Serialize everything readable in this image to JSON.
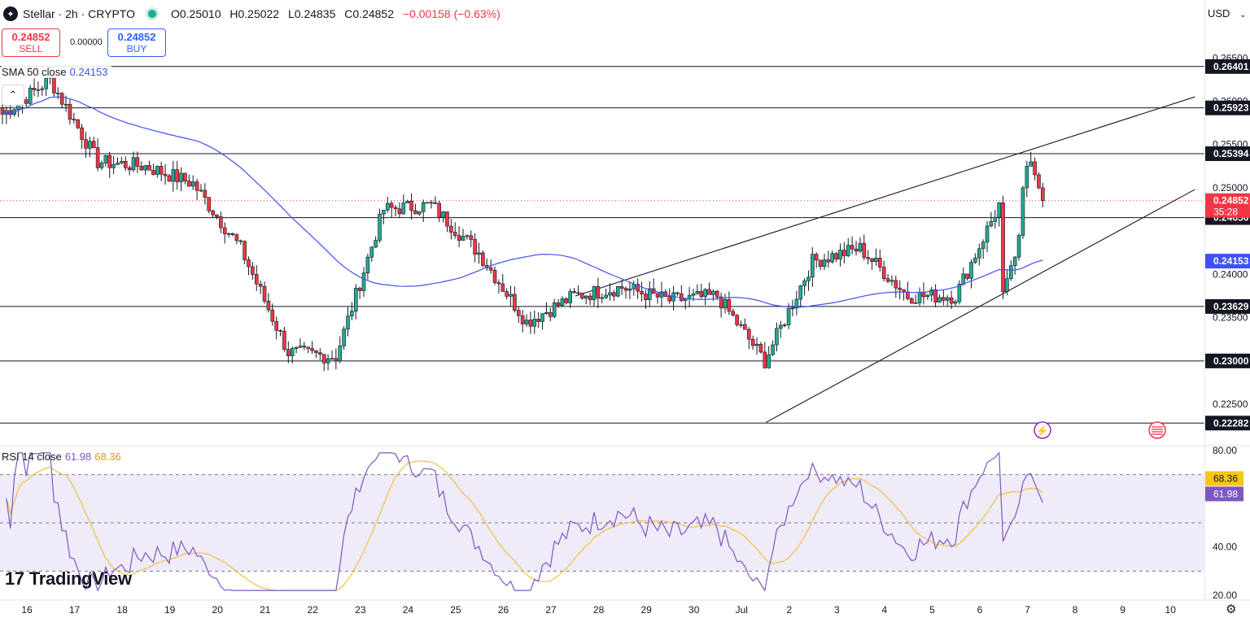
{
  "header": {
    "symbol": "Stellar · 2h · CRYPTO",
    "open": "O0.25010",
    "high": "H0.25022",
    "low": "L0.24835",
    "close": "C0.24852",
    "change": "−0.00158 (−0.63%)"
  },
  "trade": {
    "sell_price": "0.24852",
    "sell_label": "SELL",
    "buy_price": "0.24852",
    "buy_label": "BUY",
    "spread": "0.00000"
  },
  "legend": {
    "sma_label": "SMA 50 close",
    "sma_value": "0.24153",
    "rsi_label": "RSI 14 close",
    "rsi_value": "61.98",
    "rsi_ma_value": "68.36"
  },
  "currency": "USD",
  "brand": "TradingView",
  "colors": {
    "up": "#22ab94",
    "down": "#f23645",
    "sma": "#3f51f5",
    "rsi": "#7e57c2",
    "rsi_ma": "#f0c040"
  },
  "chart_data": {
    "type": "candlestick",
    "interval": "2h",
    "x_ticks": [
      "16",
      "17",
      "18",
      "19",
      "20",
      "21",
      "22",
      "23",
      "24",
      "25",
      "26",
      "27",
      "28",
      "29",
      "30",
      "Jul",
      "2",
      "3",
      "4",
      "5",
      "6",
      "7",
      "8",
      "9",
      "10"
    ],
    "y_ticks": [
      "0.26500",
      "0.26000",
      "0.25500",
      "0.25000",
      "0.24000",
      "0.23500",
      "0.22500"
    ],
    "price_range": [
      0.2205,
      0.2685
    ],
    "horizontal_levels": [
      "0.26401",
      "0.25923",
      "0.25394",
      "0.24656",
      "0.23629",
      "0.23000",
      "0.22282"
    ],
    "current_price": {
      "value": 0.24852,
      "label": "0.24852",
      "countdown": "35:28"
    },
    "sma_tag": {
      "value": 0.24153,
      "label": "0.24153"
    },
    "trendlines": [
      {
        "from": [
          "Jun 27",
          0.2375
        ],
        "to": [
          "Jul 10",
          0.2605
        ]
      },
      {
        "from": [
          "Jul 1",
          0.2229
        ],
        "to": [
          "Jul 10",
          0.2498
        ]
      }
    ],
    "key_closes": [
      {
        "date": "Jun 16",
        "close": 0.2585
      },
      {
        "date": "Jun 17",
        "close": 0.2625
      },
      {
        "date": "Jun 18",
        "close": 0.253
      },
      {
        "date": "Jun 19",
        "close": 0.2525
      },
      {
        "date": "Jun 20",
        "close": 0.2505
      },
      {
        "date": "Jun 21",
        "close": 0.243
      },
      {
        "date": "Jun 22",
        "close": 0.231
      },
      {
        "date": "Jun 23",
        "close": 0.2305
      },
      {
        "date": "Jun 24",
        "close": 0.2475
      },
      {
        "date": "Jun 25",
        "close": 0.248
      },
      {
        "date": "Jun 26",
        "close": 0.2425
      },
      {
        "date": "Jun 27",
        "close": 0.2345
      },
      {
        "date": "Jun 28",
        "close": 0.2375
      },
      {
        "date": "Jun 29",
        "close": 0.2385
      },
      {
        "date": "Jun 30",
        "close": 0.237
      },
      {
        "date": "Jul 1",
        "close": 0.2375
      },
      {
        "date": "Jul 2",
        "close": 0.23
      },
      {
        "date": "Jul 3",
        "close": 0.2415
      },
      {
        "date": "Jul 4",
        "close": 0.243
      },
      {
        "date": "Jul 5",
        "close": 0.2375
      },
      {
        "date": "Jul 6",
        "close": 0.2375
      },
      {
        "date": "Jul 7",
        "close": 0.249
      }
    ],
    "rsi": {
      "y_ticks": [
        "80.00",
        "40.00",
        "20.00"
      ],
      "range": [
        18,
        82
      ],
      "bands": [
        70,
        50,
        30
      ],
      "last": 61.98,
      "ma_last": 68.36
    }
  }
}
